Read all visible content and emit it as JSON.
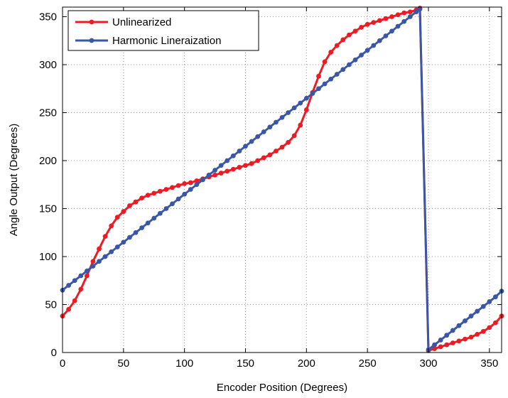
{
  "chart_data": {
    "type": "line",
    "title": "",
    "xlabel": "Encoder Position (Degrees)",
    "ylabel": "Angle Output (Degrees)",
    "xlim": [
      0,
      360
    ],
    "ylim": [
      0,
      360
    ],
    "xticks": [
      0,
      50,
      100,
      150,
      200,
      250,
      300,
      350
    ],
    "yticks": [
      0,
      50,
      100,
      150,
      200,
      250,
      300,
      350
    ],
    "grid": true,
    "legend_position": "top-left",
    "series": [
      {
        "name": "Unlinearized",
        "color": "#ed1c24",
        "x": [
          0,
          5,
          10,
          15,
          20,
          25,
          30,
          35,
          40,
          45,
          50,
          55,
          60,
          65,
          70,
          75,
          80,
          85,
          90,
          95,
          100,
          105,
          110,
          115,
          120,
          125,
          130,
          135,
          140,
          145,
          150,
          155,
          160,
          165,
          170,
          175,
          180,
          185,
          190,
          195,
          200,
          205,
          210,
          215,
          220,
          225,
          230,
          235,
          240,
          245,
          250,
          255,
          260,
          265,
          270,
          275,
          280,
          285,
          290,
          293,
          300,
          305,
          310,
          315,
          320,
          325,
          330,
          335,
          340,
          345,
          350,
          355,
          360
        ],
        "y": [
          38,
          45,
          54,
          66,
          80,
          95,
          108,
          121,
          132,
          141,
          147,
          153,
          157,
          161,
          164,
          166,
          168,
          170,
          172,
          174,
          176,
          177,
          179,
          181,
          183,
          185,
          187,
          189,
          191,
          193,
          195,
          197,
          200,
          203,
          206,
          210,
          214,
          219,
          226,
          237,
          253,
          271,
          288,
          303,
          313,
          320,
          326,
          331,
          335,
          339,
          342,
          344,
          346,
          348,
          350,
          352,
          354,
          355,
          357,
          359,
          2,
          4,
          6,
          8,
          10,
          12,
          14,
          16,
          19,
          22,
          26,
          31,
          38
        ]
      },
      {
        "name": "Harmonic Lineraization",
        "color": "#3a56a7",
        "x": [
          0,
          5,
          10,
          15,
          20,
          25,
          30,
          35,
          40,
          45,
          50,
          55,
          60,
          65,
          70,
          75,
          80,
          85,
          90,
          95,
          100,
          105,
          110,
          115,
          120,
          125,
          130,
          135,
          140,
          145,
          150,
          155,
          160,
          165,
          170,
          175,
          180,
          185,
          190,
          195,
          200,
          205,
          210,
          215,
          220,
          225,
          230,
          235,
          240,
          245,
          250,
          255,
          260,
          265,
          270,
          275,
          280,
          285,
          290,
          293,
          300,
          305,
          310,
          315,
          320,
          325,
          330,
          335,
          340,
          345,
          350,
          355,
          360
        ],
        "y": [
          65,
          70,
          75,
          80,
          85,
          90,
          95,
          100,
          105,
          110,
          115,
          120,
          125,
          130,
          135,
          140,
          145,
          150,
          155,
          160,
          165,
          170,
          175,
          180,
          185,
          190,
          195,
          200,
          205,
          210,
          215,
          220,
          225,
          230,
          235,
          240,
          245,
          250,
          255,
          260,
          265,
          270,
          275,
          280,
          285,
          290,
          295,
          300,
          305,
          310,
          315,
          320,
          325,
          330,
          335,
          340,
          345,
          350,
          355,
          358,
          3,
          8,
          13,
          18,
          23,
          28,
          33,
          38,
          43,
          48,
          53,
          58,
          64
        ]
      }
    ]
  }
}
